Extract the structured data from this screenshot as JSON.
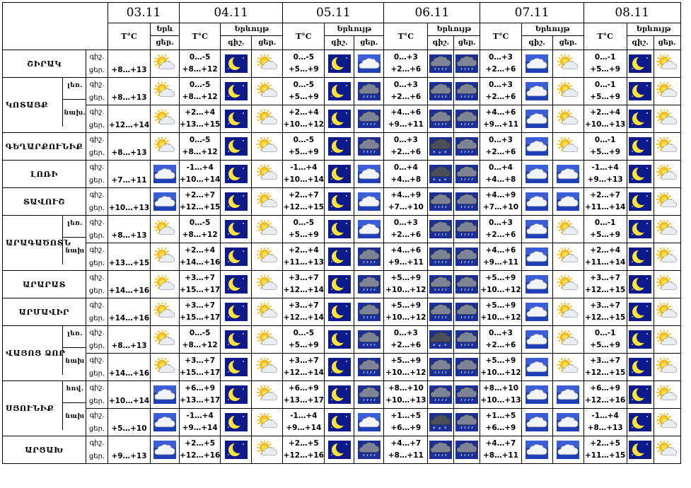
{
  "header": {
    "dates": [
      "03.11",
      "04.11",
      "05.11",
      "06.11",
      "07.11",
      "08.11"
    ],
    "temp_label": "T°C",
    "day1_icon_label": "Երև",
    "day1_sub": "ցեր.",
    "icons_label": "Երևույթ",
    "night_label": "գիշ.",
    "day_label": "ցեր."
  },
  "row_labels": {
    "night": "գիշ.",
    "day": "ցեր."
  },
  "regions": [
    {
      "name": "ՇԻՐԱԿ",
      "rows": [
        {
          "sub": "",
          "d1": {
            "t": "+8…+13",
            "i": "sun"
          },
          "days": [
            {
              "n": "0…-5",
              "d": "+8…+12",
              "ni": "moon",
              "di": "sun"
            },
            {
              "n": "0…-5",
              "d": "+5…+9",
              "ni": "moon",
              "di": "cloud"
            },
            {
              "n": "0…+3",
              "d": "+2…+6",
              "ni": "rain",
              "di": "rain"
            },
            {
              "n": "0…+3",
              "d": "+2…+6",
              "ni": "cloud",
              "di": "sun"
            },
            {
              "n": "0…-1",
              "d": "+5…+9",
              "ni": "moon",
              "di": "sun"
            }
          ]
        }
      ]
    },
    {
      "name": "ԿՈՏԱՅՔ",
      "rows": [
        {
          "sub": "լեռ.",
          "d1": {
            "t": "+8…+13",
            "i": "sun"
          },
          "days": [
            {
              "n": "0…-5",
              "d": "+8…+12",
              "ni": "moon",
              "di": "sun"
            },
            {
              "n": "0…-5",
              "d": "+5…+9",
              "ni": "moon",
              "di": "rain"
            },
            {
              "n": "0…+3",
              "d": "+2…+6",
              "ni": "rain",
              "di": "rain"
            },
            {
              "n": "0…+3",
              "d": "+2…+6",
              "ni": "cloud",
              "di": "sun"
            },
            {
              "n": "0…-1",
              "d": "+5…+9",
              "ni": "moon",
              "di": "sun"
            }
          ]
        },
        {
          "sub": "նախ.",
          "d1": {
            "t": "+12…+14",
            "i": "sun"
          },
          "days": [
            {
              "n": "+2…+4",
              "d": "+13…+15",
              "ni": "moon",
              "di": "sun"
            },
            {
              "n": "+2…+4",
              "d": "+10…+12",
              "ni": "moon",
              "di": "rain"
            },
            {
              "n": "+4…+6",
              "d": "+9…+11",
              "ni": "rain",
              "di": "rain"
            },
            {
              "n": "+4…+6",
              "d": "+9…+11",
              "ni": "cloud",
              "di": "sun"
            },
            {
              "n": "+2…+4",
              "d": "+10…+13",
              "ni": "moon",
              "di": "sun"
            }
          ]
        }
      ]
    },
    {
      "name": "ԳԵՂԱՐՔՈՒՆԻՔ",
      "rows": [
        {
          "sub": "",
          "d1": {
            "t": "+8…+13",
            "i": "sun"
          },
          "days": [
            {
              "n": "0…-5",
              "d": "+8…+12",
              "ni": "moon",
              "di": "sun"
            },
            {
              "n": "0…-5",
              "d": "+5…+9",
              "ni": "moon",
              "di": "rain"
            },
            {
              "n": "0…+3",
              "d": "+2…+6",
              "ni": "snow",
              "di": "rain"
            },
            {
              "n": "0…+3",
              "d": "+2…+6",
              "ni": "cloud",
              "di": "sun"
            },
            {
              "n": "0…-1",
              "d": "+5…+9",
              "ni": "moon",
              "di": "sun"
            }
          ]
        }
      ]
    },
    {
      "name": "ԼՈՌԻ",
      "rows": [
        {
          "sub": "",
          "d1": {
            "t": "+7…+11",
            "i": "cloud"
          },
          "days": [
            {
              "n": "-1…+4",
              "d": "+10…+14",
              "ni": "moon",
              "di": "sun"
            },
            {
              "n": "-1…+4",
              "d": "+10…+14",
              "ni": "moon",
              "di": "cloud"
            },
            {
              "n": "0…+4",
              "d": "+4…+8",
              "ni": "snow",
              "di": "rain"
            },
            {
              "n": "0…+4",
              "d": "+4…+8",
              "ni": "cloud",
              "di": "cloud"
            },
            {
              "n": "-1…+4",
              "d": "+9…+13",
              "ni": "moon",
              "di": "sun"
            }
          ]
        }
      ]
    },
    {
      "name": "ՏԱՎՈՒՇ",
      "rows": [
        {
          "sub": "",
          "d1": {
            "t": "+10…+13",
            "i": "cloud"
          },
          "days": [
            {
              "n": "+2…+7",
              "d": "+12…+15",
              "ni": "moon",
              "di": "sun"
            },
            {
              "n": "+2…+7",
              "d": "+12…+15",
              "ni": "moon",
              "di": "cloud"
            },
            {
              "n": "+4…+9",
              "d": "+7…+10",
              "ni": "rain",
              "di": "rain"
            },
            {
              "n": "+4…+9",
              "d": "+7…+10",
              "ni": "cloud",
              "di": "cloud"
            },
            {
              "n": "+2…+7",
              "d": "+11…+14",
              "ni": "moon",
              "di": "sun"
            }
          ]
        }
      ]
    },
    {
      "name": "ԱՐԱԳԱԾՈՏՆ",
      "rows": [
        {
          "sub": "լեռ.",
          "d1": {
            "t": "+8…+13",
            "i": "sun"
          },
          "days": [
            {
              "n": "0…-5",
              "d": "+8…+12",
              "ni": "moon",
              "di": "sun"
            },
            {
              "n": "0…-5",
              "d": "+5…+9",
              "ni": "moon",
              "di": "cloud"
            },
            {
              "n": "0…+3",
              "d": "+2…+6",
              "ni": "rain",
              "di": "rain"
            },
            {
              "n": "0…+3",
              "d": "+2…+6",
              "ni": "cloud",
              "di": "sun"
            },
            {
              "n": "0…-1",
              "d": "+5…+9",
              "ni": "moon",
              "di": "sun"
            }
          ]
        },
        {
          "sub": "նախ",
          "d1": {
            "t": "+13…+15",
            "i": "sun"
          },
          "days": [
            {
              "n": "+2…+4",
              "d": "+14…+16",
              "ni": "moon",
              "di": "sun"
            },
            {
              "n": "+2…+4",
              "d": "+11…+13",
              "ni": "moon",
              "di": "rain"
            },
            {
              "n": "+4…+6",
              "d": "+9…+11",
              "ni": "rain",
              "di": "rain"
            },
            {
              "n": "+4…+6",
              "d": "+9…+11",
              "ni": "cloud",
              "di": "sun"
            },
            {
              "n": "+2…+4",
              "d": "+11…+14",
              "ni": "moon",
              "di": "sun"
            }
          ]
        }
      ]
    },
    {
      "name": "ԱՐԱՐԱՏ",
      "rows": [
        {
          "sub": "",
          "d1": {
            "t": "+14…+16",
            "i": "sun"
          },
          "days": [
            {
              "n": "+3…+7",
              "d": "+15…+17",
              "ni": "moon",
              "di": "sun"
            },
            {
              "n": "+3…+7",
              "d": "+12…+14",
              "ni": "moon",
              "di": "rain"
            },
            {
              "n": "+5…+9",
              "d": "+10…+12",
              "ni": "rain",
              "di": "rain"
            },
            {
              "n": "+5…+9",
              "d": "+10…+12",
              "ni": "cloud",
              "di": "sun"
            },
            {
              "n": "+3…+7",
              "d": "+12…+15",
              "ni": "moon",
              "di": "sun"
            }
          ]
        }
      ]
    },
    {
      "name": "ԱՐՄԱՎԻՐ",
      "rows": [
        {
          "sub": "",
          "d1": {
            "t": "+14…+16",
            "i": "sun"
          },
          "days": [
            {
              "n": "+3…+7",
              "d": "+15…+17",
              "ni": "moon",
              "di": "sun"
            },
            {
              "n": "+3…+7",
              "d": "+12…+14",
              "ni": "moon",
              "di": "rain"
            },
            {
              "n": "+5…+9",
              "d": "+10…+12",
              "ni": "rain",
              "di": "rain"
            },
            {
              "n": "+5…+9",
              "d": "+10…+12",
              "ni": "cloud",
              "di": "sun"
            },
            {
              "n": "+3…+7",
              "d": "+12…+15",
              "ni": "moon",
              "di": "sun"
            }
          ]
        }
      ]
    },
    {
      "name": "ՎԱՅՈՑ ՁՈՐ",
      "rows": [
        {
          "sub": "լեռ.",
          "d1": {
            "t": "+8…+13",
            "i": "sun"
          },
          "days": [
            {
              "n": "0…-5",
              "d": "+8…+12",
              "ni": "moon",
              "di": "sun"
            },
            {
              "n": "0…-5",
              "d": "+5…+9",
              "ni": "moon",
              "di": "rain"
            },
            {
              "n": "0…+3",
              "d": "+2…+6",
              "ni": "snow",
              "di": "rain"
            },
            {
              "n": "0…+3",
              "d": "+2…+6",
              "ni": "cloud",
              "di": "sun"
            },
            {
              "n": "0…-1",
              "d": "+5…+9",
              "ni": "moon",
              "di": "sun"
            }
          ]
        },
        {
          "sub": "նախ",
          "d1": {
            "t": "+14…+16",
            "i": "sun"
          },
          "days": [
            {
              "n": "+3…+7",
              "d": "+15…+17",
              "ni": "moon",
              "di": "sun"
            },
            {
              "n": "+3…+7",
              "d": "+12…+14",
              "ni": "moon",
              "di": "rain"
            },
            {
              "n": "+5…+9",
              "d": "+10…+12",
              "ni": "rain",
              "di": "rain"
            },
            {
              "n": "+5…+9",
              "d": "+10…+12",
              "ni": "cloud",
              "di": "sun"
            },
            {
              "n": "+3…+7",
              "d": "+12…+15",
              "ni": "moon",
              "di": "sun"
            }
          ]
        }
      ]
    },
    {
      "name": "ՍՅՈՒՆԻՔ",
      "rows": [
        {
          "sub": "հով.",
          "d1": {
            "t": "+10…+14",
            "i": "cloud"
          },
          "days": [
            {
              "n": "+6…+9",
              "d": "+13…+17",
              "ni": "moon",
              "di": "sun"
            },
            {
              "n": "+6…+9",
              "d": "+13…+17",
              "ni": "moon",
              "di": "rain"
            },
            {
              "n": "+8…+10",
              "d": "+10…+13",
              "ni": "rain",
              "di": "rain"
            },
            {
              "n": "+8…+10",
              "d": "+10…+13",
              "ni": "cloud",
              "di": "cloud"
            },
            {
              "n": "+6…+9",
              "d": "+12…+16",
              "ni": "moon",
              "di": "sun"
            }
          ]
        },
        {
          "sub": "նախ",
          "d1": {
            "t": "+5…+10",
            "i": "cloud"
          },
          "days": [
            {
              "n": "-1…+4",
              "d": "+9…+14",
              "ni": "moon",
              "di": "sun"
            },
            {
              "n": "-1…+4",
              "d": "+9…+14",
              "ni": "moon",
              "di": "cloud"
            },
            {
              "n": "+1…+5",
              "d": "+6…+9",
              "ni": "snow",
              "di": "rain"
            },
            {
              "n": "+1…+5",
              "d": "+6…+9",
              "ni": "cloud",
              "di": "cloud"
            },
            {
              "n": "-1…+4",
              "d": "+8…+13",
              "ni": "moon",
              "di": "sun"
            }
          ]
        }
      ]
    },
    {
      "name": "ԱՐՑԱԽ",
      "rows": [
        {
          "sub": "",
          "d1": {
            "t": "+9…+13",
            "i": "cloud"
          },
          "days": [
            {
              "n": "+2…+5",
              "d": "+12…+16",
              "ni": "moon",
              "di": "sun"
            },
            {
              "n": "+2…+5",
              "d": "+12…+16",
              "ni": "moon",
              "di": "rain"
            },
            {
              "n": "+4…+7",
              "d": "+8…+11",
              "ni": "rain",
              "di": "rain"
            },
            {
              "n": "+4…+7",
              "d": "+8…+11",
              "ni": "cloud",
              "di": "cloud"
            },
            {
              "n": "+2…+5",
              "d": "+11…+15",
              "ni": "moon",
              "di": "sun"
            }
          ]
        }
      ]
    }
  ]
}
